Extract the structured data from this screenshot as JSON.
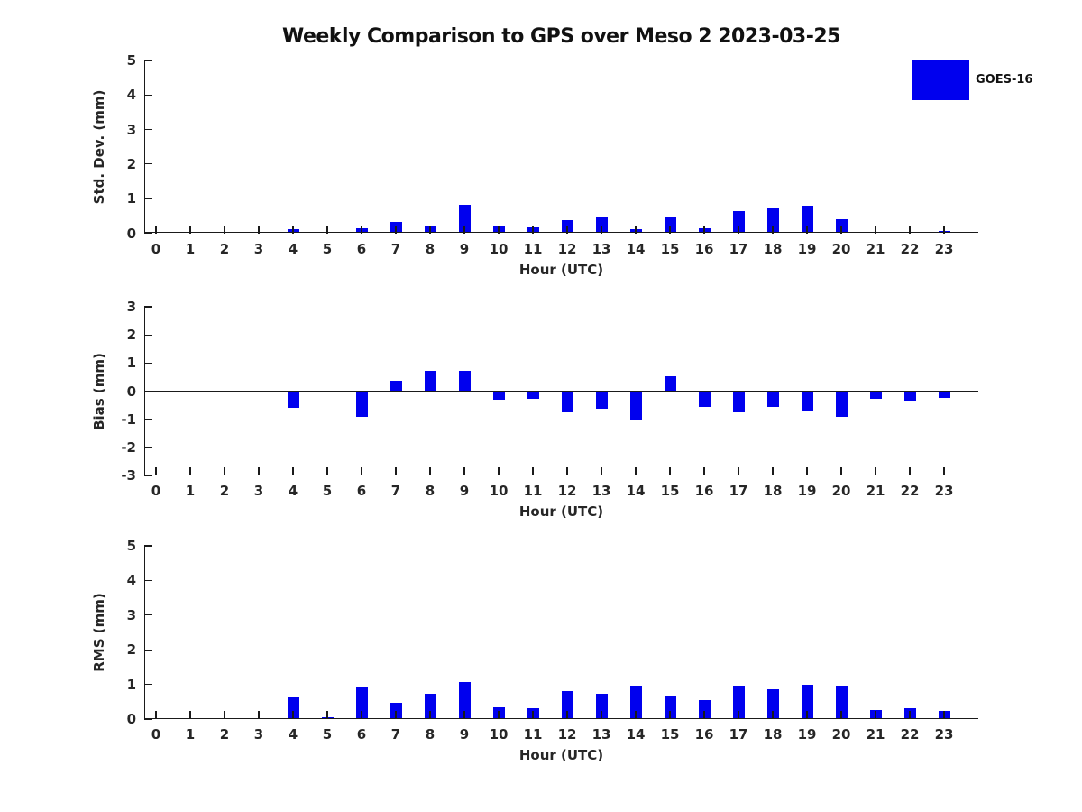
{
  "title": "Weekly Comparison to GPS over Meso 2 2023-03-25",
  "legend": {
    "label": "GOES-16",
    "swatch_color": "#0000EE",
    "position": "northeast"
  },
  "colors": {
    "bar": "#0000EE",
    "text": "#262626",
    "axis": "#1a1a1a"
  },
  "chart_data": [
    {
      "type": "bar",
      "name": "std-dev",
      "ylabel": "Std. Dev. (mm)",
      "xlabel": "Hour (UTC)",
      "ylim": [
        0,
        5
      ],
      "yticks": [
        0,
        1,
        2,
        3,
        4,
        5
      ],
      "grid": false,
      "categories": [
        "0",
        "1",
        "2",
        "3",
        "4",
        "5",
        "6",
        "7",
        "8",
        "9",
        "10",
        "11",
        "12",
        "13",
        "14",
        "15",
        "16",
        "17",
        "18",
        "19",
        "20",
        "21",
        "22",
        "23"
      ],
      "series": [
        {
          "name": "GOES-16",
          "values": [
            0,
            0,
            0,
            0,
            0.12,
            0.05,
            0.15,
            0.32,
            0.2,
            0.82,
            0.22,
            0.17,
            0.37,
            0.47,
            0.11,
            0.45,
            0.14,
            0.63,
            0.73,
            0.79,
            0.41,
            0,
            0.05,
            0.06
          ]
        }
      ]
    },
    {
      "type": "bar",
      "name": "bias",
      "ylabel": "Bias (mm)",
      "xlabel": "Hour (UTC)",
      "ylim": [
        -3,
        3
      ],
      "yticks": [
        -3,
        -2,
        -1,
        0,
        1,
        2,
        3
      ],
      "grid": false,
      "zero_line": true,
      "categories": [
        "0",
        "1",
        "2",
        "3",
        "4",
        "5",
        "6",
        "7",
        "8",
        "9",
        "10",
        "11",
        "12",
        "13",
        "14",
        "15",
        "16",
        "17",
        "18",
        "19",
        "20",
        "21",
        "22",
        "23"
      ],
      "series": [
        {
          "name": "GOES-16",
          "values": [
            0,
            0,
            0,
            0,
            -0.6,
            -0.05,
            -0.9,
            0.38,
            0.72,
            0.72,
            -0.3,
            -0.28,
            -0.75,
            -0.63,
            -1.0,
            0.52,
            -0.55,
            -0.75,
            -0.55,
            -0.68,
            -0.92,
            -0.28,
            -0.33,
            -0.25
          ]
        }
      ]
    },
    {
      "type": "bar",
      "name": "rms",
      "ylabel": "RMS (mm)",
      "xlabel": "Hour (UTC)",
      "ylim": [
        0,
        5
      ],
      "yticks": [
        0,
        1,
        2,
        3,
        4,
        5
      ],
      "grid": false,
      "categories": [
        "0",
        "1",
        "2",
        "3",
        "4",
        "5",
        "6",
        "7",
        "8",
        "9",
        "10",
        "11",
        "12",
        "13",
        "14",
        "15",
        "16",
        "17",
        "18",
        "19",
        "20",
        "21",
        "22",
        "23"
      ],
      "series": [
        {
          "name": "GOES-16",
          "values": [
            0,
            0,
            0,
            0,
            0.62,
            0.05,
            0.92,
            0.48,
            0.73,
            1.08,
            0.35,
            0.3,
            0.8,
            0.74,
            0.97,
            0.67,
            0.55,
            0.96,
            0.87,
            1.0,
            0.97,
            0.27,
            0.3,
            0.23
          ]
        }
      ]
    }
  ]
}
